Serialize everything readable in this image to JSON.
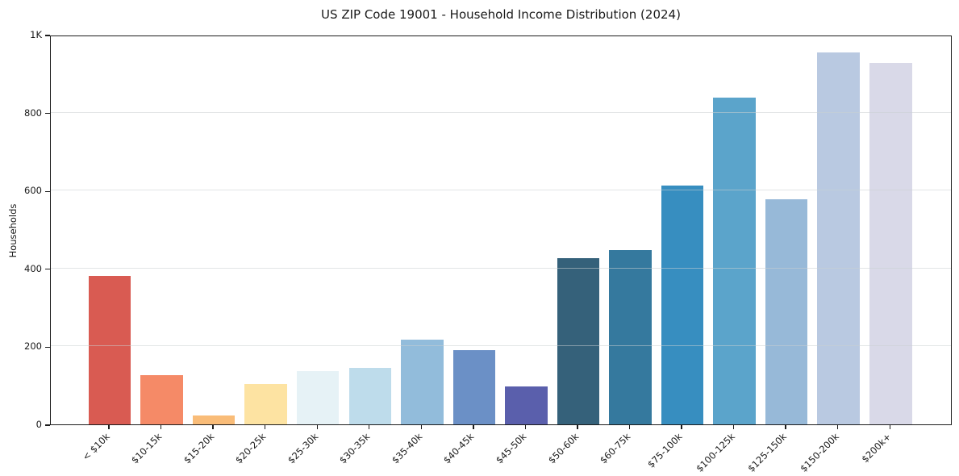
{
  "chart_data": {
    "type": "bar",
    "title": "US ZIP Code 19001 - Household Income Distribution (2024)",
    "xlabel": "",
    "ylabel": "Households",
    "ylim": [
      0,
      1000
    ],
    "grid": "horizontal",
    "legend_position": "none",
    "ytick_values": [
      0,
      200,
      400,
      600,
      800,
      1000
    ],
    "ytick_labels": [
      "0",
      "200",
      "400",
      "600",
      "800",
      "1K"
    ],
    "grid_values": [
      200,
      400,
      600,
      800
    ],
    "categories": [
      "< $10k",
      "$10-15k",
      "$15-20k",
      "$20-25k",
      "$25-30k",
      "$30-35k",
      "$35-40k",
      "$40-45k",
      "$45-50k",
      "$50-60k",
      "$60-75k",
      "$75-100k",
      "$100-125k",
      "$125-150k",
      "$150-200k",
      "$200k+"
    ],
    "values": [
      381,
      127,
      22,
      104,
      136,
      144,
      217,
      190,
      97,
      427,
      448,
      612,
      838,
      577,
      955,
      927
    ],
    "bar_colors": [
      "#d95b52",
      "#f58a67",
      "#f9bc78",
      "#fde3a2",
      "#e6f2f6",
      "#bedceb",
      "#92bcdb",
      "#6b90c6",
      "#5a5fac",
      "#35617a",
      "#35799e",
      "#378ec0",
      "#5ba4cb",
      "#97b9d8",
      "#b9c9e1",
      "#d9d9e8"
    ]
  },
  "colors": {
    "background": "#ffffff",
    "spine": "#1c1c1c",
    "grid": "#e9ebec",
    "text": "#1a1a1a"
  }
}
